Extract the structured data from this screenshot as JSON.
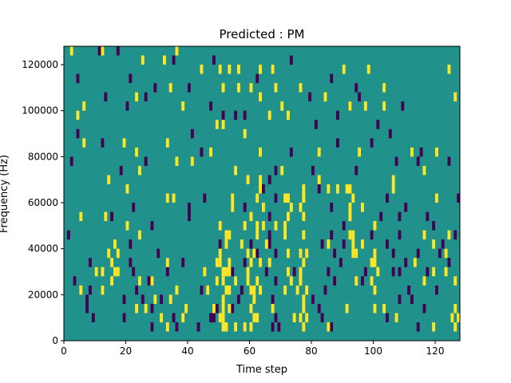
{
  "chart_data": {
    "type": "heatmap",
    "title": "Predicted : PM",
    "xlabel": "Time step",
    "ylabel": "Frequency (Hz)",
    "xlim": [
      0,
      128
    ],
    "ylim": [
      0,
      128000
    ],
    "xticks": [
      0,
      20,
      40,
      60,
      80,
      100,
      120
    ],
    "yticks": [
      0,
      20000,
      40000,
      60000,
      80000,
      100000,
      120000
    ],
    "xtick_labels": [
      "0",
      "20",
      "40",
      "60",
      "80",
      "100",
      "120"
    ],
    "ytick_labels": [
      "0",
      "20000",
      "40000",
      "60000",
      "80000",
      "100000",
      "120000"
    ],
    "colormap": "viridis",
    "background_color": "#21918c",
    "color_low": "#440154",
    "color_high": "#fde725",
    "grid": false,
    "cell_height_hz": 4000,
    "high_cells": [
      [
        2,
        124000
      ],
      [
        12,
        124000
      ],
      [
        25,
        120000
      ],
      [
        32,
        120000
      ],
      [
        36,
        124000
      ],
      [
        44,
        116000
      ],
      [
        50,
        116000
      ],
      [
        53,
        116000
      ],
      [
        56,
        116000
      ],
      [
        63,
        116000
      ],
      [
        67,
        116000
      ],
      [
        90,
        116000
      ],
      [
        98,
        116000
      ],
      [
        124,
        116000
      ],
      [
        34,
        108000
      ],
      [
        51,
        108000
      ],
      [
        56,
        108000
      ],
      [
        60,
        108000
      ],
      [
        68,
        108000
      ],
      [
        76,
        108000
      ],
      [
        103,
        108000
      ],
      [
        23,
        104000
      ],
      [
        63,
        104000
      ],
      [
        84,
        104000
      ],
      [
        126,
        104000
      ],
      [
        6,
        100000
      ],
      [
        38,
        100000
      ],
      [
        70,
        100000
      ],
      [
        92,
        100000
      ],
      [
        97,
        100000
      ],
      [
        103,
        100000
      ],
      [
        4,
        96000
      ],
      [
        66,
        96000
      ],
      [
        72,
        96000
      ],
      [
        49,
        92000
      ],
      [
        51,
        92000
      ],
      [
        58,
        88000
      ],
      [
        6,
        84000
      ],
      [
        19,
        84000
      ],
      [
        33,
        84000
      ],
      [
        47,
        80000
      ],
      [
        63,
        80000
      ],
      [
        82,
        80000
      ],
      [
        95,
        80000
      ],
      [
        112,
        80000
      ],
      [
        120,
        80000
      ],
      [
        23,
        80000
      ],
      [
        36,
        76000
      ],
      [
        41,
        76000
      ],
      [
        24,
        72000
      ],
      [
        55,
        72000
      ],
      [
        70,
        72000
      ],
      [
        116,
        72000
      ],
      [
        59,
        68000
      ],
      [
        63,
        64000
      ],
      [
        85,
        64000
      ],
      [
        88,
        64000
      ],
      [
        91,
        64000
      ],
      [
        106,
        64000
      ],
      [
        14,
        68000
      ],
      [
        20,
        64000
      ],
      [
        82,
        68000
      ],
      [
        106,
        68000
      ],
      [
        120,
        60000
      ],
      [
        33,
        60000
      ],
      [
        35,
        60000
      ],
      [
        54,
        60000
      ],
      [
        72,
        60000
      ],
      [
        77,
        60000
      ],
      [
        92,
        56000
      ],
      [
        96,
        56000
      ],
      [
        76,
        56000
      ],
      [
        64,
        56000
      ],
      [
        54,
        56000
      ],
      [
        5,
        52000
      ],
      [
        13,
        52000
      ],
      [
        20,
        48000
      ],
      [
        50,
        48000
      ],
      [
        58,
        48000
      ],
      [
        62,
        48000
      ],
      [
        68,
        48000
      ],
      [
        100,
        48000
      ],
      [
        124,
        44000
      ],
      [
        24,
        44000
      ],
      [
        52,
        40000
      ],
      [
        57,
        40000
      ],
      [
        65,
        40000
      ],
      [
        85,
        40000
      ],
      [
        93,
        40000
      ],
      [
        96,
        40000
      ],
      [
        116,
        44000
      ],
      [
        119,
        40000
      ],
      [
        123,
        36000
      ],
      [
        14,
        36000
      ],
      [
        17,
        36000
      ],
      [
        33,
        32000
      ],
      [
        49,
        32000
      ],
      [
        53,
        32000
      ],
      [
        63,
        32000
      ],
      [
        66,
        32000
      ],
      [
        100,
        32000
      ],
      [
        113,
        32000
      ],
      [
        119,
        28000
      ],
      [
        123,
        28000
      ],
      [
        10,
        28000
      ],
      [
        12,
        28000
      ],
      [
        28,
        24000
      ],
      [
        45,
        28000
      ],
      [
        49,
        24000
      ],
      [
        55,
        24000
      ],
      [
        73,
        24000
      ],
      [
        76,
        24000
      ],
      [
        94,
        24000
      ],
      [
        116,
        24000
      ],
      [
        126,
        24000
      ],
      [
        5,
        20000
      ],
      [
        12,
        20000
      ],
      [
        36,
        20000
      ],
      [
        46,
        20000
      ],
      [
        61,
        20000
      ],
      [
        63,
        20000
      ],
      [
        71,
        20000
      ],
      [
        75,
        20000
      ],
      [
        29,
        16000
      ],
      [
        34,
        16000
      ],
      [
        39,
        12000
      ],
      [
        48,
        12000
      ],
      [
        53,
        12000
      ],
      [
        67,
        12000
      ],
      [
        77,
        12000
      ],
      [
        91,
        12000
      ],
      [
        100,
        12000
      ],
      [
        103,
        12000
      ],
      [
        31,
        8000
      ],
      [
        38,
        8000
      ],
      [
        55,
        4000
      ],
      [
        58,
        4000
      ],
      [
        62,
        8000
      ],
      [
        74,
        8000
      ],
      [
        78,
        8000
      ],
      [
        85,
        4000
      ],
      [
        107,
        8000
      ],
      [
        125,
        8000
      ],
      [
        119,
        4000
      ],
      [
        50,
        36000
      ],
      [
        50,
        32000
      ],
      [
        51,
        28000
      ],
      [
        51,
        24000
      ],
      [
        51,
        16000
      ],
      [
        51,
        12000
      ],
      [
        51,
        8000
      ],
      [
        51,
        4000
      ],
      [
        52,
        44000
      ],
      [
        53,
        44000
      ],
      [
        52,
        20000
      ],
      [
        53,
        20000
      ],
      [
        52,
        28000
      ],
      [
        53,
        28000
      ],
      [
        50,
        8000
      ],
      [
        52,
        4000
      ],
      [
        59,
        36000
      ],
      [
        59,
        28000
      ],
      [
        59,
        24000
      ],
      [
        60,
        12000
      ],
      [
        61,
        8000
      ],
      [
        60,
        32000
      ],
      [
        61,
        36000
      ],
      [
        62,
        24000
      ],
      [
        60,
        20000
      ],
      [
        61,
        16000
      ],
      [
        60,
        4000
      ],
      [
        62,
        44000
      ],
      [
        64,
        48000
      ],
      [
        60,
        52000
      ],
      [
        62,
        60000
      ],
      [
        63,
        68000
      ],
      [
        77,
        64000
      ],
      [
        77,
        60000
      ],
      [
        77,
        52000
      ],
      [
        77,
        44000
      ],
      [
        78,
        36000
      ],
      [
        77,
        32000
      ],
      [
        76,
        28000
      ],
      [
        78,
        20000
      ],
      [
        77,
        16000
      ],
      [
        76,
        8000
      ],
      [
        77,
        4000
      ],
      [
        72,
        52000
      ],
      [
        71,
        60000
      ],
      [
        72,
        36000
      ],
      [
        72,
        28000
      ],
      [
        76,
        36000
      ],
      [
        71,
        44000
      ],
      [
        71,
        48000
      ],
      [
        73,
        56000
      ],
      [
        92,
        44000
      ],
      [
        93,
        44000
      ],
      [
        93,
        36000
      ],
      [
        94,
        36000
      ],
      [
        99,
        32000
      ],
      [
        99,
        24000
      ],
      [
        100,
        20000
      ],
      [
        101,
        28000
      ],
      [
        100,
        36000
      ],
      [
        92,
        64000
      ],
      [
        93,
        60000
      ],
      [
        92,
        52000
      ],
      [
        126,
        12000
      ],
      [
        127,
        8000
      ],
      [
        126,
        4000
      ],
      [
        15,
        32000
      ],
      [
        16,
        28000
      ],
      [
        15,
        24000
      ],
      [
        17,
        28000
      ],
      [
        16,
        40000
      ],
      [
        23,
        12000
      ],
      [
        26,
        12000
      ],
      [
        33,
        4000
      ],
      [
        24,
        24000
      ]
    ],
    "low_cells": [
      [
        11,
        124000
      ],
      [
        17,
        124000
      ],
      [
        35,
        120000
      ],
      [
        73,
        120000
      ],
      [
        48,
        120000
      ],
      [
        4,
        112000
      ],
      [
        21,
        112000
      ],
      [
        62,
        112000
      ],
      [
        86,
        112000
      ],
      [
        29,
        108000
      ],
      [
        40,
        108000
      ],
      [
        94,
        108000
      ],
      [
        13,
        104000
      ],
      [
        26,
        104000
      ],
      [
        79,
        104000
      ],
      [
        20,
        100000
      ],
      [
        47,
        100000
      ],
      [
        109,
        100000
      ],
      [
        51,
        96000
      ],
      [
        55,
        96000
      ],
      [
        58,
        96000
      ],
      [
        81,
        92000
      ],
      [
        4,
        88000
      ],
      [
        12,
        84000
      ],
      [
        41,
        88000
      ],
      [
        99,
        84000
      ],
      [
        2,
        76000
      ],
      [
        26,
        76000
      ],
      [
        18,
        72000
      ],
      [
        44,
        80000
      ],
      [
        88,
        84000
      ],
      [
        124,
        76000
      ],
      [
        115,
        80000
      ],
      [
        114,
        76000
      ],
      [
        94,
        72000
      ],
      [
        107,
        76000
      ],
      [
        80,
        72000
      ],
      [
        82,
        64000
      ],
      [
        68,
        60000
      ],
      [
        86,
        56000
      ],
      [
        58,
        56000
      ],
      [
        45,
        60000
      ],
      [
        40,
        56000
      ],
      [
        40,
        52000
      ],
      [
        15,
        52000
      ],
      [
        22,
        56000
      ],
      [
        108,
        52000
      ],
      [
        117,
        52000
      ],
      [
        127,
        60000
      ],
      [
        126,
        44000
      ],
      [
        28,
        48000
      ],
      [
        1,
        44000
      ],
      [
        119,
        48000
      ],
      [
        122,
        40000
      ],
      [
        114,
        36000
      ],
      [
        110,
        32000
      ],
      [
        68,
        36000
      ],
      [
        38,
        32000
      ],
      [
        65,
        28000
      ],
      [
        74,
        28000
      ],
      [
        85,
        28000
      ],
      [
        27,
        24000
      ],
      [
        44,
        20000
      ],
      [
        7,
        16000
      ],
      [
        31,
        16000
      ],
      [
        28,
        12000
      ],
      [
        35,
        8000
      ],
      [
        36,
        4000
      ],
      [
        19,
        16000
      ],
      [
        47,
        8000
      ],
      [
        43,
        4000
      ],
      [
        104,
        8000
      ],
      [
        114,
        4000
      ],
      [
        112,
        16000
      ],
      [
        96,
        24000
      ],
      [
        106,
        36000
      ],
      [
        104,
        40000
      ],
      [
        99,
        44000
      ],
      [
        90,
        48000
      ],
      [
        86,
        44000
      ],
      [
        66,
        52000
      ],
      [
        66,
        40000
      ],
      [
        62,
        36000
      ],
      [
        58,
        32000
      ],
      [
        56,
        16000
      ],
      [
        54,
        28000
      ],
      [
        68,
        8000
      ],
      [
        69,
        4000
      ],
      [
        67,
        4000
      ],
      [
        67,
        16000
      ],
      [
        68,
        24000
      ],
      [
        80,
        16000
      ],
      [
        82,
        12000
      ],
      [
        84,
        20000
      ],
      [
        83,
        8000
      ],
      [
        86,
        4000
      ],
      [
        87,
        24000
      ],
      [
        89,
        32000
      ],
      [
        108,
        28000
      ],
      [
        108,
        16000
      ],
      [
        111,
        20000
      ],
      [
        116,
        12000
      ],
      [
        97,
        28000
      ],
      [
        106,
        28000
      ],
      [
        7,
        12000
      ],
      [
        8,
        20000
      ],
      [
        8,
        32000
      ],
      [
        49,
        12000
      ],
      [
        48,
        8000
      ],
      [
        54,
        12000
      ],
      [
        57,
        20000
      ],
      [
        50,
        40000
      ],
      [
        60,
        40000
      ],
      [
        66,
        44000
      ],
      [
        83,
        40000
      ],
      [
        87,
        36000
      ],
      [
        90,
        40000
      ],
      [
        102,
        52000
      ],
      [
        104,
        60000
      ],
      [
        110,
        56000
      ],
      [
        108,
        44000
      ],
      [
        117,
        28000
      ],
      [
        120,
        20000
      ],
      [
        121,
        36000
      ],
      [
        124,
        32000
      ],
      [
        3,
        24000
      ],
      [
        9,
        8000
      ],
      [
        19,
        8000
      ],
      [
        21,
        40000
      ],
      [
        21,
        32000
      ],
      [
        22,
        28000
      ],
      [
        23,
        20000
      ],
      [
        25,
        16000
      ],
      [
        28,
        4000
      ],
      [
        30,
        36000
      ],
      [
        33,
        28000
      ],
      [
        64,
        64000
      ],
      [
        66,
        68000
      ],
      [
        68,
        72000
      ],
      [
        73,
        80000
      ],
      [
        88,
        96000
      ],
      [
        92,
        100000
      ],
      [
        95,
        104000
      ],
      [
        101,
        92000
      ],
      [
        105,
        88000
      ]
    ]
  }
}
